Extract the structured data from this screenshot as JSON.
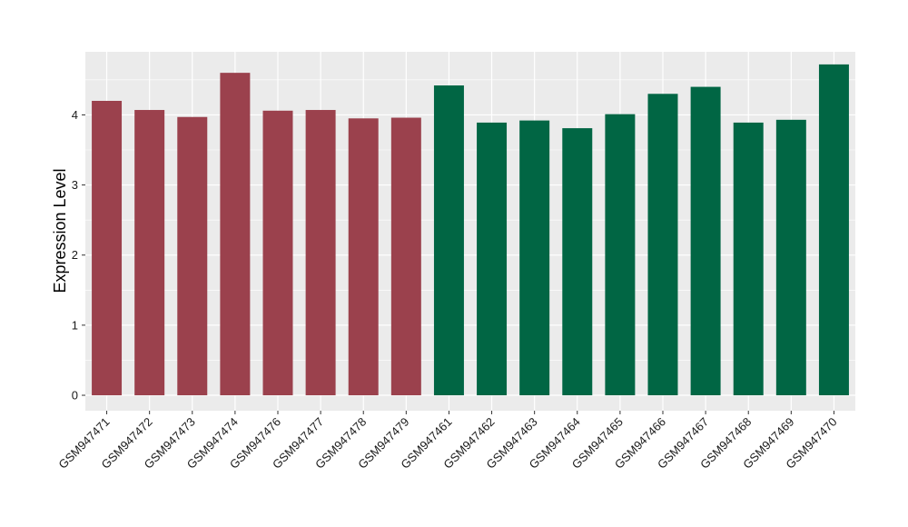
{
  "chart_data": {
    "type": "bar",
    "ylabel": "Expression Level",
    "xlabel": "",
    "ylim": [
      -0.22,
      4.9
    ],
    "yticks": [
      0,
      1,
      2,
      3,
      4
    ],
    "ytick_labels": [
      "0",
      "1",
      "2",
      "3",
      "4"
    ],
    "grid": true,
    "legend": "none",
    "colors": {
      "panel": "#ebebeb",
      "grid_major": "#ffffff",
      "group_a": "#9b414d",
      "group_b": "#016644"
    },
    "categories": [
      "GSM947471",
      "GSM947472",
      "GSM947473",
      "GSM947474",
      "GSM947476",
      "GSM947477",
      "GSM947478",
      "GSM947479",
      "GSM947461",
      "GSM947462",
      "GSM947463",
      "GSM947464",
      "GSM947465",
      "GSM947466",
      "GSM947467",
      "GSM947468",
      "GSM947469",
      "GSM947470"
    ],
    "values": [
      4.2,
      4.07,
      3.97,
      4.6,
      4.06,
      4.07,
      3.95,
      3.96,
      4.42,
      3.89,
      3.92,
      3.81,
      4.01,
      4.3,
      4.4,
      3.89,
      3.93,
      4.72
    ],
    "groups": [
      "a",
      "a",
      "a",
      "a",
      "a",
      "a",
      "a",
      "a",
      "b",
      "b",
      "b",
      "b",
      "b",
      "b",
      "b",
      "b",
      "b",
      "b"
    ]
  }
}
